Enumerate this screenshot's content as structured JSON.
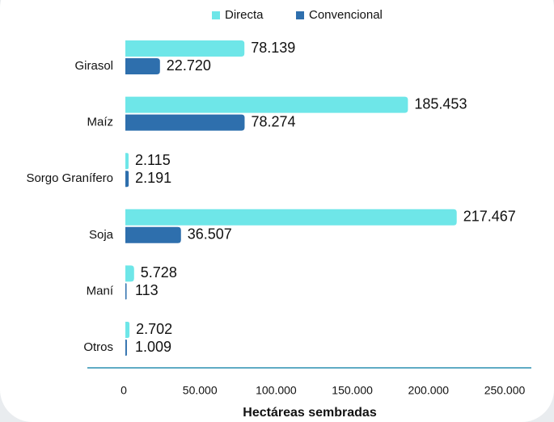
{
  "chart_data": {
    "type": "bar",
    "orientation": "horizontal",
    "xlabel": "Hectáreas sembradas",
    "categories": [
      "Girasol",
      "Maíz",
      "Sorgo Granífero",
      "Soja",
      "Maní",
      "Otros"
    ],
    "series": [
      {
        "name": "Directa",
        "color": "#6ee6e8",
        "values": [
          78139,
          185453,
          2115,
          217467,
          5728,
          2702
        ],
        "value_labels": [
          "78.139",
          "185.453",
          "2.115",
          "217.467",
          "5.728",
          "2.702"
        ]
      },
      {
        "name": "Convencional",
        "color": "#2e6fad",
        "values": [
          22720,
          78274,
          2191,
          36507,
          113,
          1009
        ],
        "value_labels": [
          "22.720",
          "78.274",
          "2.191",
          "36.507",
          "113",
          "1.009"
        ]
      }
    ],
    "xlim": [
      0,
      250000
    ],
    "xticks": [
      0,
      {
        "value": 50000,
        "label": "50.000"
      },
      {
        "value": 100000,
        "label": "100.000"
      },
      {
        "value": 150000,
        "label": "150.000"
      },
      {
        "value": 200000,
        "label": "200.000"
      },
      {
        "value": 250000,
        "label": "250.000"
      }
    ],
    "legend": "top"
  }
}
